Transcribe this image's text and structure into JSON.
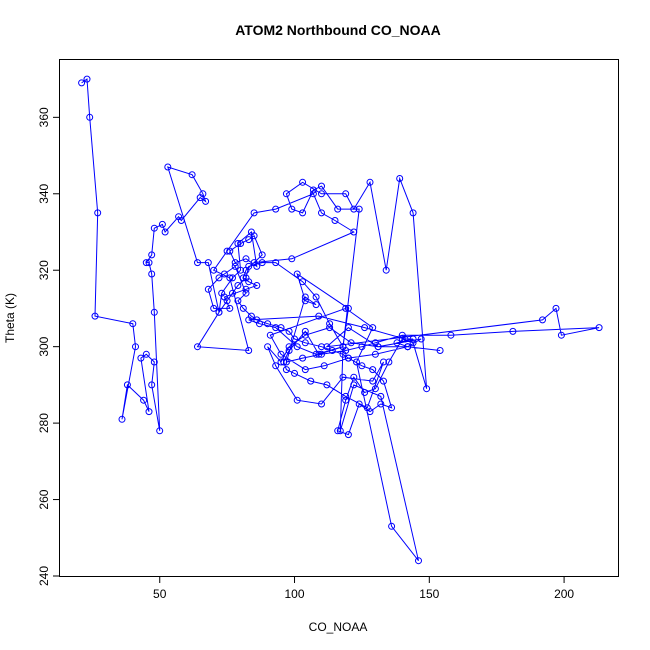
{
  "chart_data": {
    "type": "line",
    "title": "ATOM2 Northbound CO_NOAA",
    "xlabel": "CO_NOAA",
    "ylabel": "Theta (K)",
    "xlim": [
      13,
      220
    ],
    "ylim": [
      240,
      375
    ],
    "xticks": [
      50,
      100,
      150,
      200
    ],
    "yticks": [
      240,
      260,
      280,
      300,
      320,
      340,
      360
    ],
    "color": "#0000ff",
    "grid": false,
    "x": [
      21,
      23,
      24,
      27,
      26,
      40,
      41,
      36,
      38,
      44,
      46,
      43,
      45,
      48,
      47,
      50,
      48,
      47,
      46,
      45,
      47,
      48,
      51,
      52,
      57,
      58,
      65,
      67,
      66,
      62,
      53,
      64,
      68,
      72,
      73,
      77,
      80,
      79,
      84,
      86,
      82,
      78,
      76,
      80,
      83,
      85,
      88,
      82,
      81,
      83,
      86,
      82,
      74,
      76,
      70,
      68,
      72,
      74,
      78,
      82,
      79,
      81,
      84,
      86,
      90,
      95,
      98,
      100,
      104,
      110,
      114,
      118,
      120,
      125,
      129,
      133,
      136,
      132,
      128,
      124,
      120,
      116,
      119,
      122,
      126,
      130,
      135,
      140,
      144,
      149,
      144,
      139,
      134,
      128,
      122,
      119,
      110,
      103,
      97,
      99,
      103,
      107,
      110,
      116,
      124,
      118,
      109,
      104,
      98,
      96,
      97,
      100,
      106,
      112,
      119,
      127,
      133,
      129,
      118,
      110,
      101,
      93,
      90,
      95,
      98,
      104,
      113,
      121,
      131,
      142,
      154,
      142,
      130,
      120,
      111,
      104,
      95,
      91,
      119,
      129,
      123,
      136,
      146,
      132,
      122,
      117,
      118,
      108,
      101,
      93,
      87,
      83,
      109,
      126,
      141,
      144,
      138,
      142,
      147,
      131,
      120,
      112,
      192,
      197,
      199,
      213,
      181,
      158,
      140,
      130,
      125,
      119,
      110,
      103,
      97,
      104,
      108,
      104,
      101,
      120,
      118,
      113,
      108,
      103,
      93,
      88,
      83,
      82,
      79,
      77,
      75,
      72,
      64,
      83,
      76,
      70,
      75,
      85,
      93,
      107,
      110,
      115,
      122,
      99,
      85
    ],
    "y": [
      369,
      370,
      360,
      335,
      308,
      306,
      300,
      281,
      290,
      286,
      283,
      297,
      298,
      296,
      290,
      278,
      309,
      319,
      322,
      322,
      324,
      331,
      332,
      330,
      334,
      333,
      339,
      338,
      340,
      345,
      347,
      322,
      322,
      309,
      314,
      318,
      320,
      327,
      330,
      321,
      323,
      322,
      325,
      327,
      328,
      329,
      324,
      320,
      318,
      317,
      316,
      315,
      313,
      310,
      310,
      315,
      318,
      319,
      321,
      314,
      312,
      310,
      308,
      307,
      306,
      305,
      304,
      302,
      301,
      300,
      299,
      298,
      297,
      295,
      294,
      291,
      284,
      285,
      283,
      285,
      277,
      278,
      286,
      292,
      288,
      289,
      296,
      302,
      301,
      289,
      335,
      344,
      320,
      343,
      336,
      340,
      340,
      343,
      340,
      336,
      335,
      341,
      342,
      336,
      336,
      300,
      298,
      304,
      299,
      296,
      294,
      293,
      291,
      290,
      287,
      284,
      296,
      291,
      292,
      285,
      286,
      295,
      300,
      296,
      300,
      303,
      305,
      301,
      300,
      300,
      299,
      300,
      298,
      297,
      295,
      294,
      298,
      303,
      310,
      305,
      296,
      253,
      244,
      287,
      290,
      278,
      300,
      298,
      300,
      305,
      306,
      307,
      308,
      305,
      302,
      302,
      301,
      300,
      302,
      300,
      305,
      300,
      307,
      310,
      303,
      305,
      304,
      303,
      303,
      301,
      300,
      299,
      298,
      297,
      296,
      313,
      311,
      312,
      319,
      310,
      300,
      306,
      313,
      317,
      322,
      322,
      321,
      318,
      316,
      314,
      312,
      309,
      300,
      299,
      318,
      320,
      325,
      335,
      336,
      340,
      335,
      333,
      330,
      323,
      322
    ]
  }
}
